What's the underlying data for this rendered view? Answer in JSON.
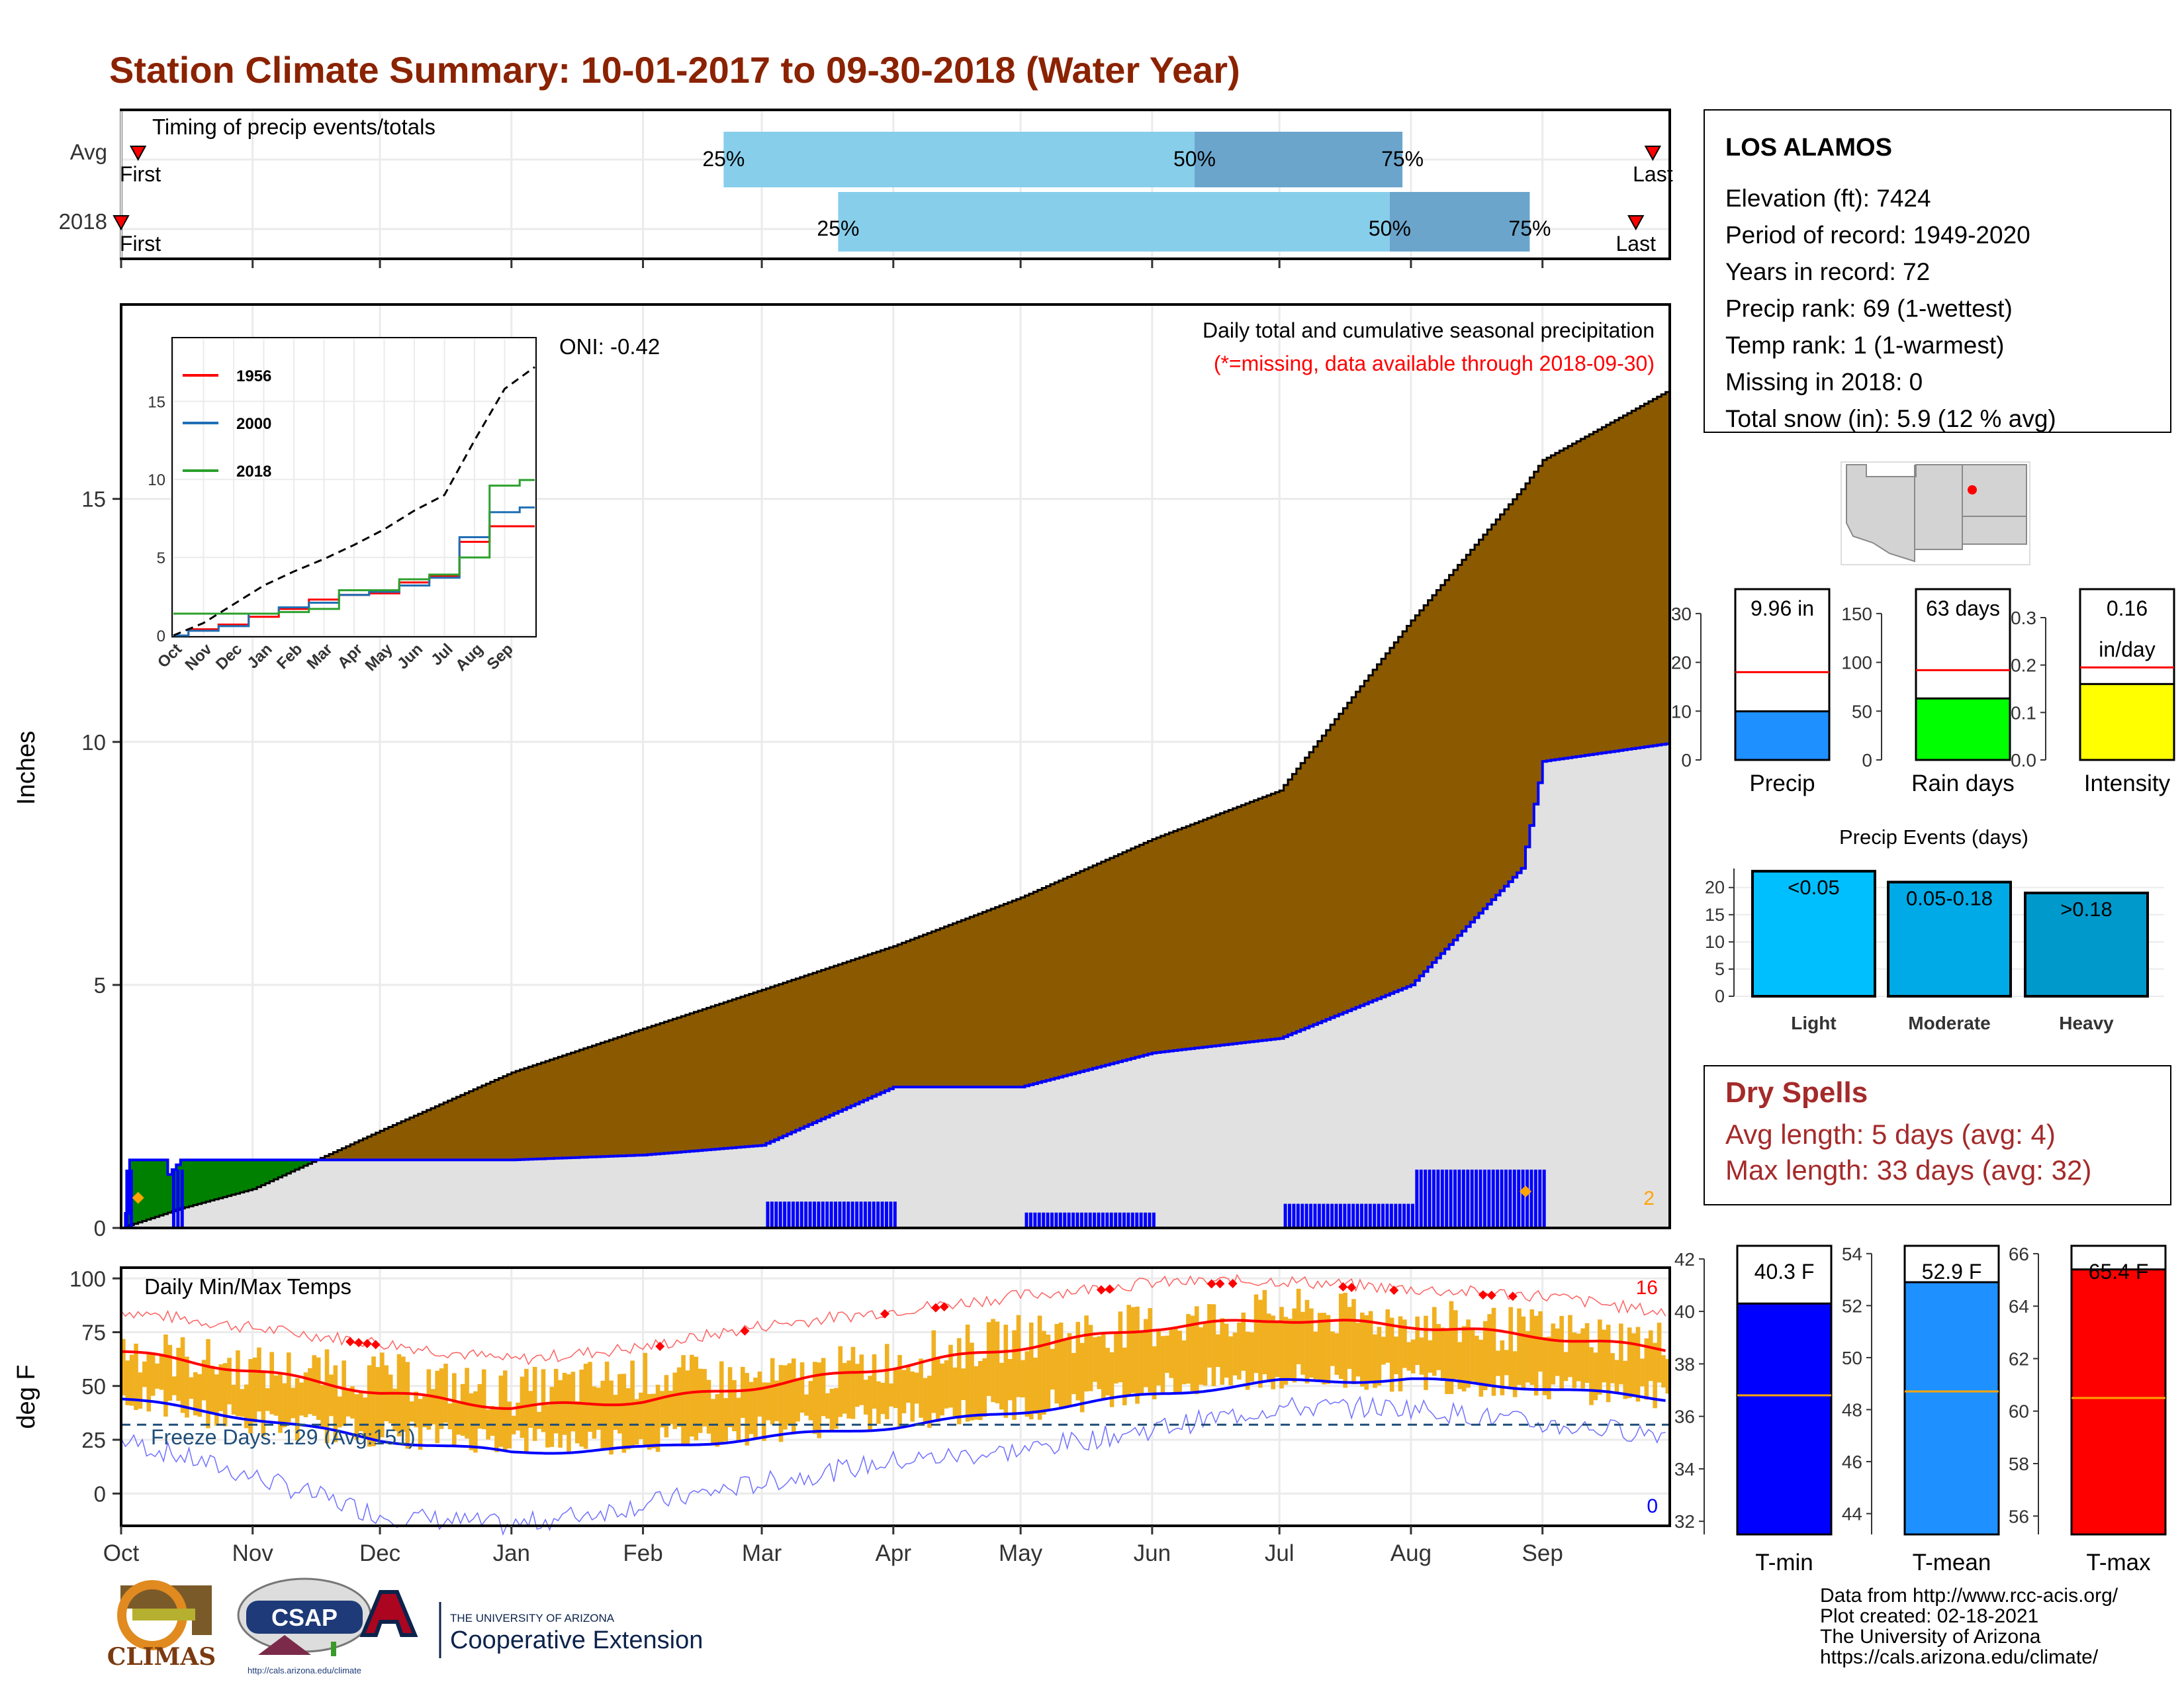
{
  "title": "Station Climate Summary: 10-01-2017 to 09-30-2018 (Water Year)",
  "colors": {
    "title": "#8b2200",
    "cumulative_2018": "#8b5a00",
    "cumulative_avg_fill": "#e1e1e1",
    "avg_line": "#0000ff",
    "ahead_of_avg": "#008000",
    "daily_precip": "#0000ff",
    "temp_band": "#f0b020",
    "temp_max_avg": "#ff0000",
    "temp_min_avg": "#0000ff",
    "dry_spells": "#a52a2a"
  },
  "timing": {
    "title": "Timing of precip events/totals",
    "rows": [
      {
        "label": "Avg",
        "first_label": "First",
        "last_label": "Last",
        "q25": "25%",
        "q50": "50%",
        "q75": "75%"
      },
      {
        "label": "2018",
        "first_label": "First",
        "last_label": "Last",
        "q25": "25%",
        "q50": "50%",
        "q75": "75%"
      }
    ]
  },
  "precip_panel": {
    "note1": "Daily total and cumulative seasonal precipitation",
    "note2": "(*=missing, data available through 2018-09-30)",
    "oni": "ONI: -0.42",
    "ylabel": "Inches",
    "yticks": [
      "0",
      "5",
      "10",
      "15"
    ],
    "corner_count": "2"
  },
  "inset": {
    "legend": [
      "1956",
      "2000",
      "2018"
    ],
    "legend_colors": [
      "#ff0000",
      "#1f6fb5",
      "#2ca02c"
    ],
    "yticks": [
      "0",
      "5",
      "10",
      "15"
    ],
    "xticks": [
      "Oct",
      "Nov",
      "Dec",
      "Jan",
      "Feb",
      "Mar",
      "Apr",
      "May",
      "Jun",
      "Jul",
      "Aug",
      "Sep"
    ]
  },
  "temp_panel": {
    "title": "Daily Min/Max Temps",
    "ylabel": "deg F",
    "yticks": [
      "0",
      "25",
      "50",
      "75",
      "100"
    ],
    "freeze": "Freeze Days: 129 (Avg:151)",
    "count_top": "16",
    "count_bottom": "0"
  },
  "months": [
    "Oct",
    "Nov",
    "Dec",
    "Jan",
    "Feb",
    "Mar",
    "Apr",
    "May",
    "Jun",
    "Jul",
    "Aug",
    "Sep"
  ],
  "station": {
    "name": "LOS ALAMOS",
    "lines": [
      "Elevation (ft): 7424",
      "Period of record: 1949-2020",
      "Years in record: 72",
      "Precip rank: 69 (1-wettest)",
      "Temp rank: 1 (1-warmest)",
      "Missing in 2018: 0",
      "Total snow (in): 5.9 (12 % avg)"
    ]
  },
  "mini_bars": [
    {
      "label": "Precip",
      "value_label": "9.96 in",
      "yticks": [
        "0",
        "10",
        "20",
        "30"
      ],
      "color": "#1e90ff"
    },
    {
      "label": "Rain days",
      "value_label": "63 days",
      "yticks": [
        "0",
        "50",
        "100",
        "150"
      ],
      "color": "#00ff00"
    },
    {
      "label": "Intensity",
      "value_label": "0.16",
      "value_label2": "in/day",
      "yticks": [
        "0.0",
        "0.1",
        "0.2",
        "0.3"
      ],
      "color": "#ffff00"
    }
  ],
  "events": {
    "title": "Precip Events (days)",
    "yticks": [
      "0",
      "5",
      "10",
      "15",
      "20"
    ],
    "bars": [
      {
        "label": "Light",
        "range": "<0.05",
        "color": "#00bfff"
      },
      {
        "label": "Moderate",
        "range": "0.05-0.18",
        "color": "#00aae6"
      },
      {
        "label": "Heavy",
        "range": ">0.18",
        "color": "#0099cc"
      }
    ]
  },
  "dry_spells": {
    "title": "Dry Spells",
    "avg": "Avg length: 5 days (avg: 4)",
    "max": "Max length: 33 days (avg: 32)"
  },
  "temp_bars": [
    {
      "label": "T-min",
      "value_label": "40.3 F",
      "yticks": [
        "32",
        "34",
        "36",
        "38",
        "40",
        "42"
      ],
      "color": "#0000ff"
    },
    {
      "label": "T-mean",
      "value_label": "52.9 F",
      "yticks": [
        "44",
        "46",
        "48",
        "50",
        "52",
        "54"
      ],
      "color": "#1e90ff"
    },
    {
      "label": "T-max",
      "value_label": "65.4 F",
      "yticks": [
        "56",
        "58",
        "60",
        "62",
        "64",
        "66"
      ],
      "color": "#ff0000"
    }
  ],
  "logos": {
    "climas": "CLIMAS",
    "csap": "CSAP",
    "csap_url": "http://cals.arizona.edu/climate",
    "ua_small": "THE UNIVERSITY OF ARIZONA",
    "ua_big": "Cooperative Extension"
  },
  "footer": [
    "Data from http://www.rcc-acis.org/",
    "Plot created: 02-18-2021",
    "The University of Arizona",
    "https://cals.arizona.edu/climate/"
  ],
  "chart_data": [
    {
      "type": "bar",
      "title": "Timing of precip events/totals",
      "categories": [
        "Avg",
        "2018"
      ],
      "series": [
        {
          "name": "25%",
          "values": [
            "Feb 20",
            "Mar 19"
          ]
        },
        {
          "name": "50%",
          "values": [
            "Jun 11",
            "Jul 27"
          ]
        },
        {
          "name": "75%",
          "values": [
            "Jul 30",
            "Aug 29"
          ]
        },
        {
          "name": "First",
          "values": [
            "Oct 5",
            "Oct 1"
          ]
        },
        {
          "name": "Last",
          "values": [
            "Sep 27",
            "Sep 23"
          ]
        }
      ]
    },
    {
      "type": "area",
      "title": "Daily total and cumulative seasonal precipitation",
      "ylabel": "Inches",
      "ylim": [
        0,
        19
      ],
      "x": [
        "Oct 1",
        "Oct 15",
        "Nov 1",
        "Dec 1",
        "Jan 1",
        "Feb 1",
        "Mar 1",
        "Apr 1",
        "May 1",
        "Jun 1",
        "Jul 1",
        "Aug 1",
        "Aug 27",
        "Sep 1",
        "Sep 30"
      ],
      "series": [
        {
          "name": "cumulative average",
          "values": [
            0.0,
            0.4,
            0.8,
            2.0,
            3.2,
            4.1,
            4.9,
            5.8,
            6.8,
            8.0,
            9.0,
            12.5,
            15.2,
            15.8,
            17.2
          ]
        },
        {
          "name": "2018",
          "values": [
            0.0,
            1.4,
            1.4,
            1.4,
            1.4,
            1.5,
            1.7,
            2.9,
            2.9,
            3.6,
            3.9,
            5.0,
            7.4,
            9.6,
            9.96
          ]
        }
      ]
    },
    {
      "type": "line",
      "ylim": [
        0,
        19
      ],
      "x": [
        "Oct",
        "Nov",
        "Dec",
        "Jan",
        "Feb",
        "Mar",
        "Apr",
        "May",
        "Jun",
        "Jul",
        "Aug",
        "Sep",
        "Oct"
      ],
      "series": [
        {
          "name": "1956",
          "values": [
            0.0,
            0.4,
            0.7,
            1.2,
            1.7,
            2.3,
            2.6,
            2.7,
            3.4,
            3.8,
            6.0,
            7.0,
            7.0
          ]
        },
        {
          "name": "2000",
          "values": [
            0.0,
            0.3,
            0.6,
            1.4,
            1.8,
            2.1,
            2.6,
            2.8,
            3.2,
            3.7,
            6.3,
            7.9,
            8.2
          ]
        },
        {
          "name": "2018",
          "values": [
            1.4,
            1.4,
            1.4,
            1.4,
            1.5,
            1.7,
            2.9,
            2.9,
            3.6,
            3.9,
            5.0,
            9.6,
            9.96
          ]
        },
        {
          "name": "average",
          "values": [
            0.0,
            0.8,
            2.0,
            3.2,
            4.1,
            4.9,
            5.8,
            6.8,
            8.0,
            9.0,
            12.5,
            15.8,
            17.2
          ]
        }
      ]
    },
    {
      "type": "line",
      "title": "Daily Min/Max Temps",
      "ylabel": "deg F",
      "ylim": [
        -15,
        105
      ],
      "x": [
        "Oct 1",
        "Nov 1",
        "Dec 1",
        "Jan 1",
        "Feb 1",
        "Mar 1",
        "Apr 1",
        "May 1",
        "Jun 1",
        "Jul 1",
        "Aug 1",
        "Sep 1",
        "Sep 30"
      ],
      "series": [
        {
          "name": "average max",
          "values": [
            66,
            57,
            47,
            40,
            43,
            50,
            59,
            68,
            77,
            81,
            78,
            73,
            67
          ]
        },
        {
          "name": "average min",
          "values": [
            44,
            35,
            25,
            19,
            21,
            26,
            31,
            38,
            46,
            52,
            53,
            49,
            44
          ]
        },
        {
          "name": "2018 max",
          "values": [
            68,
            58,
            55,
            47,
            55,
            52,
            62,
            73,
            78,
            85,
            80,
            75,
            70
          ]
        },
        {
          "name": "2018 min",
          "values": [
            45,
            33,
            28,
            25,
            25,
            30,
            36,
            40,
            50,
            54,
            54,
            50,
            45
          ]
        },
        {
          "name": "record high",
          "values": [
            85,
            77,
            70,
            62,
            68,
            78,
            85,
            92,
            98,
            99,
            95,
            92,
            84
          ]
        },
        {
          "name": "record low",
          "values": [
            25,
            8,
            -10,
            -15,
            -5,
            5,
            15,
            20,
            30,
            40,
            40,
            32,
            28
          ]
        }
      ]
    },
    {
      "type": "bar",
      "categories": [
        "Precip"
      ],
      "values": [
        9.96
      ],
      "ylim": [
        0,
        35
      ],
      "average": 18
    },
    {
      "type": "bar",
      "categories": [
        "Rain days"
      ],
      "values": [
        63
      ],
      "ylim": [
        0,
        175
      ],
      "average": 92
    },
    {
      "type": "bar",
      "categories": [
        "Intensity"
      ],
      "values": [
        0.16
      ],
      "ylim": [
        0,
        0.36
      ],
      "average": 0.195
    },
    {
      "type": "bar",
      "title": "Precip Events (days)",
      "categories": [
        "Light",
        "Moderate",
        "Heavy"
      ],
      "values": [
        23,
        21,
        19
      ],
      "ylim": [
        0,
        23.5
      ]
    },
    {
      "type": "bar",
      "categories": [
        "T-min"
      ],
      "values": [
        40.3
      ],
      "ylim": [
        31.5,
        42.5
      ],
      "average": 36.8
    },
    {
      "type": "bar",
      "categories": [
        "T-mean"
      ],
      "values": [
        52.9
      ],
      "ylim": [
        43.2,
        54.3
      ],
      "average": 48.7
    },
    {
      "type": "bar",
      "categories": [
        "T-max"
      ],
      "values": [
        65.4
      ],
      "ylim": [
        55.3,
        66.3
      ],
      "average": 60.5
    }
  ]
}
